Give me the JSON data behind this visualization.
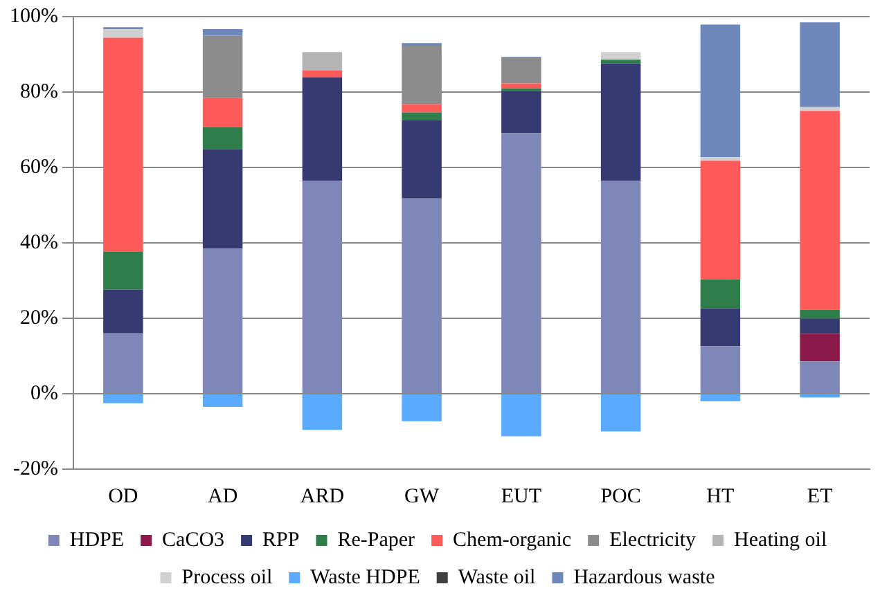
{
  "chart_data": {
    "type": "bar",
    "stacked": true,
    "categories": [
      "OD",
      "AD",
      "ARD",
      "GW",
      "EUT",
      "POC",
      "HT",
      "ET"
    ],
    "series": [
      {
        "name": "HDPE",
        "color": "#7f86b8",
        "values": [
          16,
          38.5,
          56.4,
          51.8,
          69.1,
          56.4,
          12.6,
          8.6
        ]
      },
      {
        "name": "CaCO3",
        "color": "#8b1a4a",
        "values": [
          0,
          0,
          0,
          0,
          0,
          0,
          0,
          7.3
        ]
      },
      {
        "name": "RPP",
        "color": "#363a70",
        "values": [
          11.6,
          26.3,
          27.5,
          20.8,
          11.2,
          31.2,
          10,
          4
        ]
      },
      {
        "name": "Re-Paper",
        "color": "#2e7d4a",
        "values": [
          10,
          5.9,
          0,
          2,
          0.7,
          1,
          7.7,
          2.4
        ]
      },
      {
        "name": "Chem-organic",
        "color": "#ff5a5a",
        "values": [
          56.8,
          7.7,
          1.8,
          2.2,
          1.3,
          0,
          31.5,
          52.7
        ]
      },
      {
        "name": "Electricity",
        "color": "#8c8c8c",
        "values": [
          0,
          16.6,
          0,
          15.5,
          6.7,
          0,
          0,
          0
        ]
      },
      {
        "name": "Heating oil",
        "color": "#b4b4b4",
        "values": [
          0,
          0,
          4.9,
          0,
          0,
          0,
          0,
          0
        ]
      },
      {
        "name": "Process oil",
        "color": "#d0d0d0",
        "values": [
          2.3,
          0,
          0,
          0,
          0,
          2,
          0.9,
          1
        ]
      },
      {
        "name": "Waste HDPE",
        "color": "#5aaaff",
        "values": [
          -2.5,
          -3.5,
          -9.6,
          -7.3,
          -11.3,
          -10,
          -2,
          -1
        ]
      },
      {
        "name": "Waste oil",
        "color": "#404040",
        "values": [
          0,
          0,
          0,
          0,
          0,
          0,
          0,
          0
        ]
      },
      {
        "name": "Hazardous waste",
        "color": "#6f88bb",
        "values": [
          0.5,
          1.7,
          0,
          0.7,
          0.3,
          0,
          35.2,
          22.5
        ]
      }
    ],
    "ylim": [
      -20,
      100
    ],
    "yticks": [
      {
        "value": -20,
        "label": "-20%"
      },
      {
        "value": 0,
        "label": "0%"
      },
      {
        "value": 20,
        "label": "20%"
      },
      {
        "value": 40,
        "label": "40%"
      },
      {
        "value": 60,
        "label": "60%"
      },
      {
        "value": 80,
        "label": "80%"
      },
      {
        "value": 100,
        "label": "100%"
      }
    ],
    "grid": "y",
    "legend": "bottom"
  }
}
